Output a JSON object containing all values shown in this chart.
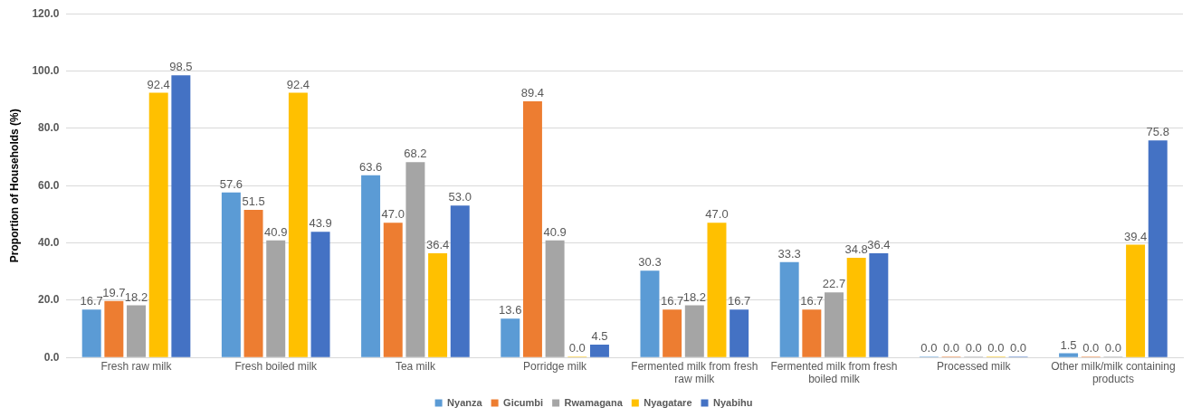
{
  "chart_data": {
    "type": "bar",
    "ylabel": "Proportion of Households (%)",
    "categories": [
      "Fresh raw milk",
      "Fresh boiled milk",
      "Tea milk",
      "Porridge milk",
      "Fermented milk from fresh raw milk",
      "Fermented milk from fresh boiled milk",
      "Processed milk",
      "Other milk/milk containing products"
    ],
    "series": [
      {
        "name": "Nyanza",
        "color": "#5b9bd5",
        "values": [
          16.7,
          57.6,
          63.6,
          13.6,
          30.3,
          33.3,
          0,
          1.5
        ],
        "value_labels": [
          "16.7",
          "57.6",
          "63.6",
          "13.6",
          "30.3",
          "33.3",
          "0.0",
          "1.5"
        ]
      },
      {
        "name": "Gicumbi",
        "color": "#ed7d31",
        "values": [
          19.7,
          51.5,
          47,
          89.4,
          16.7,
          16.7,
          0,
          0
        ],
        "value_labels": [
          "19.7",
          "51.5",
          "47.0",
          "89.4",
          "16.7",
          "16.7",
          "0.0",
          "0.0"
        ]
      },
      {
        "name": "Rwamagana",
        "color": "#a5a5a5",
        "values": [
          18.2,
          40.9,
          68.2,
          40.9,
          18.2,
          22.7,
          0,
          0
        ],
        "value_labels": [
          "18.2",
          "40.9",
          "68.2",
          "40.9",
          "18.2",
          "22.7",
          "0.0",
          "0.0"
        ]
      },
      {
        "name": "Nyagatare",
        "color": "#ffc000",
        "values": [
          92.4,
          92.4,
          36.4,
          0,
          47,
          34.8,
          0,
          39.4
        ],
        "value_labels": [
          "92.4",
          "92.4",
          "36.4",
          "0.0",
          "47.0",
          "34.8",
          "0.0",
          "39.4"
        ]
      },
      {
        "name": "Nyabihu",
        "color": "#4472c4",
        "values": [
          98.5,
          43.9,
          53,
          4.5,
          16.7,
          36.4,
          0,
          75.8
        ],
        "value_labels": [
          "98.5",
          "43.9",
          "53.0",
          "4.5",
          "16.7",
          "36.4",
          "0.0",
          "75.8"
        ]
      }
    ],
    "ylim": [
      0,
      120
    ],
    "yticks": [
      {
        "value": 0,
        "label": "0.0"
      },
      {
        "value": 20,
        "label": "20.0"
      },
      {
        "value": 40,
        "label": "40.0"
      },
      {
        "value": 60,
        "label": "60.0"
      },
      {
        "value": 80,
        "label": "80.0"
      },
      {
        "value": 100,
        "label": "100.0"
      },
      {
        "value": 120,
        "label": "120.0"
      }
    ],
    "grid": "y",
    "legend": "bottom"
  }
}
